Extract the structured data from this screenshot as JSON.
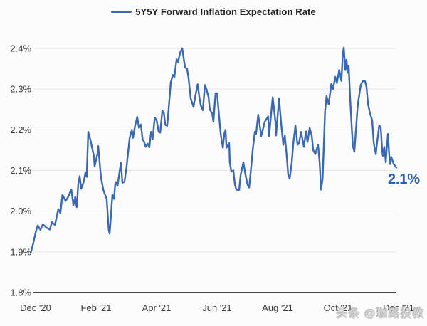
{
  "legend": {
    "label": "5Y5Y Forward Inflation Expectation Rate"
  },
  "watermark": {
    "text": "头条 @珈路投教"
  },
  "colors": {
    "line": "#3a68b2",
    "end_label": "#2d5fae",
    "grid": "#e5e5e5",
    "axis": "#454545",
    "tick_text": "#3a3a3a",
    "watermark": "#d0d0d0",
    "background": "#fcfcfc"
  },
  "chart_data": {
    "type": "line",
    "title": "5Y5Y Forward Inflation Expectation Rate",
    "xlabel": "",
    "ylabel": "",
    "ylim": [
      1.8,
      2.4
    ],
    "grid": "horizontal",
    "legend_position": "top-center",
    "y_ticks": [
      {
        "label": "1.8%",
        "value": 1.8
      },
      {
        "label": "1.9%",
        "value": 1.9
      },
      {
        "label": "2.0%",
        "value": 2.0
      },
      {
        "label": "2.1%",
        "value": 2.1
      },
      {
        "label": "2.2%",
        "value": 2.2
      },
      {
        "label": "2.3%",
        "value": 2.3
      },
      {
        "label": "2.4%",
        "value": 2.4
      }
    ],
    "x_ticks": [
      {
        "label": "Dec '20",
        "month": 0
      },
      {
        "label": "Feb '21",
        "month": 2
      },
      {
        "label": "Apr '21",
        "month": 4
      },
      {
        "label": "Jun '21",
        "month": 6
      },
      {
        "label": "Aug '21",
        "month": 8
      },
      {
        "label": "Oct '21",
        "month": 10
      },
      {
        "label": "Dec '21",
        "month": 12
      }
    ],
    "end_label": {
      "text": "2.1%",
      "t": 11.93,
      "value": 2.11
    },
    "series": [
      {
        "name": "5Y5Y Forward Inflation Expectation Rate",
        "x_unit": "months_since_Dec_2020",
        "y_unit": "percent",
        "points": [
          [
            -0.16,
            1.898
          ],
          [
            -0.08,
            1.92
          ],
          [
            0,
            1.947
          ],
          [
            0.07,
            1.965
          ],
          [
            0.16,
            1.954
          ],
          [
            0.24,
            1.968
          ],
          [
            0.35,
            1.96
          ],
          [
            0.47,
            1.955
          ],
          [
            0.54,
            1.973
          ],
          [
            0.64,
            1.966
          ],
          [
            0.75,
            2.005
          ],
          [
            0.82,
            1.995
          ],
          [
            0.89,
            2.04
          ],
          [
            0.99,
            2.025
          ],
          [
            1.06,
            2.033
          ],
          [
            1.18,
            2.053
          ],
          [
            1.25,
            2.015
          ],
          [
            1.31,
            2.035
          ],
          [
            1.36,
            2.01
          ],
          [
            1.41,
            2.065
          ],
          [
            1.46,
            2.086
          ],
          [
            1.51,
            2.055
          ],
          [
            1.58,
            2.07
          ],
          [
            1.65,
            2.095
          ],
          [
            1.69,
            2.084
          ],
          [
            1.74,
            2.195
          ],
          [
            1.81,
            2.176
          ],
          [
            1.84,
            2.165
          ],
          [
            1.93,
            2.135
          ],
          [
            1.95,
            2.11
          ],
          [
            2.05,
            2.142
          ],
          [
            2.07,
            2.16
          ],
          [
            2.16,
            2.084
          ],
          [
            2.24,
            2.052
          ],
          [
            2.35,
            2.03
          ],
          [
            2.42,
            1.953
          ],
          [
            2.45,
            1.945
          ],
          [
            2.54,
            2.04
          ],
          [
            2.59,
            2.03
          ],
          [
            2.64,
            2.072
          ],
          [
            2.71,
            2.063
          ],
          [
            2.82,
            2.119
          ],
          [
            2.87,
            2.07
          ],
          [
            2.94,
            2.072
          ],
          [
            3.01,
            2.11
          ],
          [
            3.11,
            2.18
          ],
          [
            3.18,
            2.2
          ],
          [
            3.22,
            2.18
          ],
          [
            3.29,
            2.21
          ],
          [
            3.36,
            2.232
          ],
          [
            3.42,
            2.205
          ],
          [
            3.48,
            2.213
          ],
          [
            3.54,
            2.177
          ],
          [
            3.59,
            2.17
          ],
          [
            3.64,
            2.158
          ],
          [
            3.71,
            2.166
          ],
          [
            3.76,
            2.157
          ],
          [
            3.82,
            2.195
          ],
          [
            3.87,
            2.177
          ],
          [
            3.94,
            2.23
          ],
          [
            4.0,
            2.224
          ],
          [
            4.07,
            2.195
          ],
          [
            4.12,
            2.193
          ],
          [
            4.19,
            2.247
          ],
          [
            4.24,
            2.242
          ],
          [
            4.29,
            2.212
          ],
          [
            4.35,
            2.21
          ],
          [
            4.4,
            2.252
          ],
          [
            4.47,
            2.317
          ],
          [
            4.54,
            2.335
          ],
          [
            4.59,
            2.33
          ],
          [
            4.66,
            2.373
          ],
          [
            4.71,
            2.367
          ],
          [
            4.78,
            2.39
          ],
          [
            4.85,
            2.4
          ],
          [
            4.94,
            2.353
          ],
          [
            5.01,
            2.35
          ],
          [
            5.06,
            2.326
          ],
          [
            5.13,
            2.277
          ],
          [
            5.22,
            2.256
          ],
          [
            5.29,
            2.286
          ],
          [
            5.36,
            2.312
          ],
          [
            5.41,
            2.283
          ],
          [
            5.46,
            2.26
          ],
          [
            5.53,
            2.248
          ],
          [
            5.6,
            2.31
          ],
          [
            5.65,
            2.3
          ],
          [
            5.72,
            2.28
          ],
          [
            5.76,
            2.25
          ],
          [
            5.84,
            2.24
          ],
          [
            5.88,
            2.22
          ],
          [
            5.95,
            2.29
          ],
          [
            6.0,
            2.29
          ],
          [
            6.07,
            2.23
          ],
          [
            6.12,
            2.19
          ],
          [
            6.19,
            2.156
          ],
          [
            6.24,
            2.19
          ],
          [
            6.28,
            2.2
          ],
          [
            6.31,
            2.156
          ],
          [
            6.4,
            2.167
          ],
          [
            6.42,
            2.12
          ],
          [
            6.47,
            2.097
          ],
          [
            6.54,
            2.1
          ],
          [
            6.59,
            2.065
          ],
          [
            6.64,
            2.053
          ],
          [
            6.73,
            2.052
          ],
          [
            6.78,
            2.09
          ],
          [
            6.87,
            2.12
          ],
          [
            6.94,
            2.09
          ],
          [
            7.01,
            2.065
          ],
          [
            7.06,
            2.058
          ],
          [
            7.13,
            2.11
          ],
          [
            7.18,
            2.15
          ],
          [
            7.25,
            2.195
          ],
          [
            7.29,
            2.19
          ],
          [
            7.36,
            2.237
          ],
          [
            7.46,
            2.185
          ],
          [
            7.58,
            2.22
          ],
          [
            7.69,
            2.233
          ],
          [
            7.72,
            2.185
          ],
          [
            7.84,
            2.28
          ],
          [
            7.93,
            2.22
          ],
          [
            7.95,
            2.186
          ],
          [
            8.05,
            2.277
          ],
          [
            8.12,
            2.215
          ],
          [
            8.19,
            2.163
          ],
          [
            8.24,
            2.186
          ],
          [
            8.31,
            2.13
          ],
          [
            8.35,
            2.09
          ],
          [
            8.4,
            2.08
          ],
          [
            8.47,
            2.12
          ],
          [
            8.52,
            2.167
          ],
          [
            8.59,
            2.21
          ],
          [
            8.66,
            2.163
          ],
          [
            8.71,
            2.167
          ],
          [
            8.78,
            2.195
          ],
          [
            8.87,
            2.158
          ],
          [
            8.94,
            2.196
          ],
          [
            8.99,
            2.17
          ],
          [
            9.06,
            2.205
          ],
          [
            9.13,
            2.186
          ],
          [
            9.18,
            2.15
          ],
          [
            9.25,
            2.14
          ],
          [
            9.34,
            2.163
          ],
          [
            9.39,
            2.12
          ],
          [
            9.44,
            2.053
          ],
          [
            9.49,
            2.08
          ],
          [
            9.53,
            2.16
          ],
          [
            9.57,
            2.245
          ],
          [
            9.62,
            2.283
          ],
          [
            9.69,
            2.263
          ],
          [
            9.78,
            2.313
          ],
          [
            9.83,
            2.3
          ],
          [
            9.91,
            2.33
          ],
          [
            9.96,
            2.315
          ],
          [
            10.04,
            2.347
          ],
          [
            10.11,
            2.32
          ],
          [
            10.16,
            2.39
          ],
          [
            10.19,
            2.402
          ],
          [
            10.24,
            2.347
          ],
          [
            10.28,
            2.372
          ],
          [
            10.31,
            2.34
          ],
          [
            10.35,
            2.357
          ],
          [
            10.4,
            2.277
          ],
          [
            10.45,
            2.21
          ],
          [
            10.49,
            2.16
          ],
          [
            10.54,
            2.146
          ],
          [
            10.64,
            2.25
          ],
          [
            10.66,
            2.266
          ],
          [
            10.75,
            2.31
          ],
          [
            10.82,
            2.32
          ],
          [
            10.89,
            2.32
          ],
          [
            10.94,
            2.305
          ],
          [
            10.99,
            2.263
          ],
          [
            11.06,
            2.24
          ],
          [
            11.13,
            2.223
          ],
          [
            11.18,
            2.168
          ],
          [
            11.25,
            2.14
          ],
          [
            11.29,
            2.168
          ],
          [
            11.36,
            2.21
          ],
          [
            11.41,
            2.207
          ],
          [
            11.46,
            2.15
          ],
          [
            11.48,
            2.136
          ],
          [
            11.53,
            2.158
          ],
          [
            11.58,
            2.12
          ],
          [
            11.6,
            2.145
          ],
          [
            11.65,
            2.19
          ],
          [
            11.69,
            2.14
          ],
          [
            11.72,
            2.116
          ],
          [
            11.76,
            2.133
          ],
          [
            11.84,
            2.116
          ],
          [
            11.93,
            2.107
          ]
        ]
      }
    ]
  }
}
